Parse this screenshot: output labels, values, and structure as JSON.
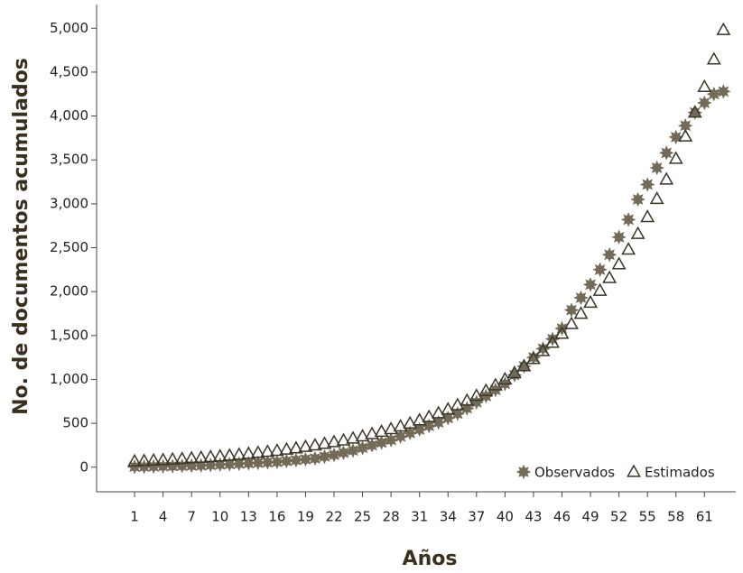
{
  "chart_data": {
    "type": "scatter",
    "x_label": "Años",
    "y_label": "No. de documentos acumulados",
    "x": [
      1,
      2,
      3,
      4,
      5,
      6,
      7,
      8,
      9,
      10,
      11,
      12,
      13,
      14,
      15,
      16,
      17,
      18,
      19,
      20,
      21,
      22,
      23,
      24,
      25,
      26,
      27,
      28,
      29,
      30,
      31,
      32,
      33,
      34,
      35,
      36,
      37,
      38,
      39,
      40,
      41,
      42,
      43,
      44,
      45,
      46,
      47,
      48,
      49,
      50,
      51,
      52,
      53,
      54,
      55,
      56,
      57,
      58,
      59,
      60,
      61,
      62,
      63
    ],
    "series": [
      {
        "name": "Observados",
        "marker": "star",
        "color": "#736a58",
        "values": [
          5,
          5,
          8,
          10,
          12,
          15,
          18,
          20,
          25,
          30,
          35,
          40,
          45,
          50,
          55,
          60,
          70,
          80,
          90,
          100,
          120,
          140,
          165,
          190,
          220,
          250,
          280,
          310,
          350,
          390,
          430,
          470,
          510,
          560,
          610,
          670,
          740,
          810,
          880,
          950,
          1050,
          1150,
          1250,
          1350,
          1460,
          1580,
          1790,
          1930,
          2080,
          2250,
          2420,
          2620,
          2820,
          3050,
          3220,
          3410,
          3580,
          3760,
          3890,
          4040,
          4150,
          4250,
          4280
        ]
      },
      {
        "name": "Estimados",
        "marker": "triangle",
        "color": "#3b3629",
        "values": [
          66,
          70,
          76,
          81,
          87,
          93,
          100,
          107,
          115,
          123,
          132,
          142,
          152,
          163,
          175,
          187,
          201,
          215,
          231,
          248,
          266,
          285,
          305,
          327,
          351,
          377,
          404,
          433,
          464,
          498,
          534,
          572,
          614,
          658,
          706,
          757,
          812,
          870,
          933,
          1000,
          1072,
          1150,
          1233,
          1322,
          1418,
          1520,
          1630,
          1748,
          1874,
          2010,
          2155,
          2311,
          2478,
          2657,
          2849,
          3055,
          3276,
          3513,
          3767,
          4039,
          4331,
          4644,
          4980
        ]
      }
    ],
    "xlim": [
      -3,
      64.3
    ],
    "xticks": [
      1,
      4,
      7,
      10,
      13,
      16,
      19,
      22,
      25,
      28,
      31,
      34,
      37,
      40,
      43,
      46,
      49,
      52,
      55,
      58,
      61
    ],
    "ylim": [
      -280,
      5270
    ],
    "yticks": [
      0,
      500,
      {
        "value": 1000,
        "label": "1,000"
      },
      {
        "value": 1500,
        "label": "1,500"
      },
      {
        "value": 2000,
        "label": "2,000"
      },
      {
        "value": 2500,
        "label": "2,500"
      },
      {
        "value": 3000,
        "label": "3,000"
      },
      {
        "value": 3500,
        "label": "3,500"
      },
      {
        "value": 4000,
        "label": "4,000"
      },
      {
        "value": 4500,
        "label": "4,500"
      },
      {
        "value": 5000,
        "label": "5,000"
      }
    ],
    "grid": false,
    "legend": "lower right"
  }
}
